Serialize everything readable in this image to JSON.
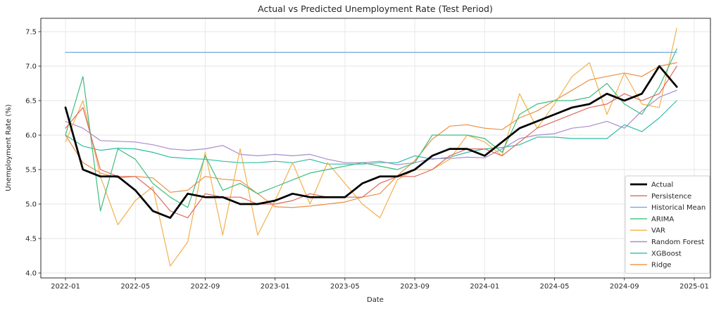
{
  "chart_data": {
    "type": "line",
    "title": "Actual vs Predicted Unemployment Rate (Test Period)",
    "xlabel": "Date",
    "ylabel": "Unemployment Rate (%)",
    "grid": true,
    "legend_position": "lower right",
    "ylim": [
      3.93,
      7.69
    ],
    "y_ticks": [
      4.0,
      4.5,
      5.0,
      5.5,
      6.0,
      6.5,
      7.0,
      7.5
    ],
    "x_tick_labels": [
      "2022-01",
      "2022-05",
      "2022-09",
      "2023-01",
      "2023-05",
      "2023-09",
      "2024-01",
      "2024-05",
      "2024-09",
      "2025-01"
    ],
    "x_tick_month_indices": [
      0,
      4,
      8,
      12,
      16,
      20,
      24,
      28,
      32,
      36
    ],
    "x": [
      "2022-01",
      "2022-02",
      "2022-03",
      "2022-04",
      "2022-05",
      "2022-06",
      "2022-07",
      "2022-08",
      "2022-09",
      "2022-10",
      "2022-11",
      "2022-12",
      "2023-01",
      "2023-02",
      "2023-03",
      "2023-04",
      "2023-05",
      "2023-06",
      "2023-07",
      "2023-08",
      "2023-09",
      "2023-10",
      "2023-11",
      "2023-12",
      "2024-01",
      "2024-02",
      "2024-03",
      "2024-04",
      "2024-05",
      "2024-06",
      "2024-07",
      "2024-08",
      "2024-09",
      "2024-10",
      "2024-11",
      "2024-12"
    ],
    "series": [
      {
        "name": "Actual",
        "color": "#000000",
        "width": 2.75,
        "values": [
          6.4,
          5.5,
          5.4,
          5.4,
          5.2,
          4.9,
          4.8,
          5.15,
          5.1,
          5.1,
          5.0,
          5.0,
          5.05,
          5.15,
          5.1,
          5.1,
          5.1,
          5.3,
          5.4,
          5.4,
          5.5,
          5.7,
          5.8,
          5.8,
          5.7,
          5.9,
          6.1,
          6.2,
          6.3,
          6.4,
          6.45,
          6.6,
          6.5,
          6.6,
          7.0,
          6.7
        ]
      },
      {
        "name": "Persistence",
        "color": "#dd6a5e",
        "width": 1.2,
        "values": [
          6.1,
          6.4,
          5.5,
          5.4,
          5.4,
          5.2,
          4.9,
          4.8,
          5.15,
          5.1,
          5.1,
          5.0,
          5.0,
          5.05,
          5.15,
          5.1,
          5.1,
          5.1,
          5.3,
          5.4,
          5.4,
          5.5,
          5.7,
          5.8,
          5.8,
          5.7,
          5.9,
          6.1,
          6.2,
          6.3,
          6.4,
          6.45,
          6.6,
          6.5,
          6.6,
          7.0
        ]
      },
      {
        "name": "Historical Mean",
        "color": "#74a9dc",
        "width": 1.3,
        "values": [
          7.2,
          7.2,
          7.2,
          7.2,
          7.2,
          7.2,
          7.2,
          7.2,
          7.2,
          7.2,
          7.2,
          7.2,
          7.2,
          7.2,
          7.2,
          7.2,
          7.2,
          7.2,
          7.2,
          7.2,
          7.2,
          7.2,
          7.2,
          7.2,
          7.2,
          7.2,
          7.2,
          7.2,
          7.2,
          7.2,
          7.2,
          7.2,
          7.2,
          7.2,
          7.2,
          7.2
        ]
      },
      {
        "name": "ARIMA",
        "color": "#3fbd7c",
        "width": 1.2,
        "values": [
          6.0,
          6.85,
          4.9,
          5.8,
          5.65,
          5.3,
          5.1,
          4.95,
          5.7,
          5.2,
          5.3,
          5.15,
          5.25,
          5.35,
          5.45,
          5.5,
          5.55,
          5.6,
          5.55,
          5.5,
          5.6,
          6.0,
          6.0,
          6.0,
          5.95,
          5.75,
          6.3,
          6.45,
          6.5,
          6.5,
          6.55,
          6.75,
          6.45,
          6.3,
          6.7,
          7.25
        ]
      },
      {
        "name": "VAR",
        "color": "#f3b04d",
        "width": 1.2,
        "values": [
          5.9,
          6.5,
          5.4,
          4.7,
          5.05,
          5.25,
          4.1,
          4.45,
          5.75,
          4.55,
          5.8,
          4.55,
          5.05,
          5.6,
          5.0,
          5.6,
          5.3,
          5.0,
          4.8,
          5.35,
          5.5,
          5.5,
          5.65,
          6.0,
          5.9,
          5.7,
          6.6,
          6.1,
          6.45,
          6.85,
          7.05,
          6.3,
          6.9,
          6.45,
          6.4,
          7.55
        ]
      },
      {
        "name": "Random Forest",
        "color": "#a98ccc",
        "width": 1.2,
        "values": [
          6.2,
          6.1,
          5.92,
          5.91,
          5.9,
          5.86,
          5.8,
          5.78,
          5.8,
          5.85,
          5.72,
          5.7,
          5.72,
          5.7,
          5.72,
          5.65,
          5.6,
          5.6,
          5.62,
          5.57,
          5.6,
          5.66,
          5.66,
          5.68,
          5.67,
          5.8,
          5.95,
          6.0,
          6.02,
          6.1,
          6.13,
          6.2,
          6.1,
          6.35,
          6.55,
          6.65
        ]
      },
      {
        "name": "XGBoost",
        "color": "#2dbfa5",
        "width": 1.2,
        "values": [
          6.0,
          5.84,
          5.78,
          5.81,
          5.8,
          5.75,
          5.68,
          5.66,
          5.65,
          5.62,
          5.6,
          5.6,
          5.62,
          5.6,
          5.65,
          5.58,
          5.58,
          5.58,
          5.6,
          5.6,
          5.7,
          5.65,
          5.68,
          5.75,
          5.8,
          5.82,
          5.86,
          5.97,
          5.97,
          5.95,
          5.95,
          5.95,
          6.15,
          6.05,
          6.25,
          6.5
        ]
      },
      {
        "name": "Ridge",
        "color": "#ea8f45",
        "width": 1.2,
        "values": [
          6.0,
          5.6,
          5.45,
          5.38,
          5.4,
          5.38,
          5.17,
          5.2,
          5.4,
          5.36,
          5.34,
          5.15,
          4.96,
          4.95,
          4.97,
          5.0,
          5.03,
          5.1,
          5.15,
          5.41,
          5.63,
          5.94,
          6.13,
          6.15,
          6.1,
          6.08,
          6.25,
          6.35,
          6.5,
          6.65,
          6.8,
          6.85,
          6.9,
          6.85,
          7.0,
          7.05
        ]
      }
    ],
    "style": {
      "grid_color": "#e6e6e6",
      "spine_color": "#2b2b2b",
      "tick_color": "#2b2b2b",
      "legend_border": "#cccccc",
      "background": "#ffffff"
    }
  }
}
